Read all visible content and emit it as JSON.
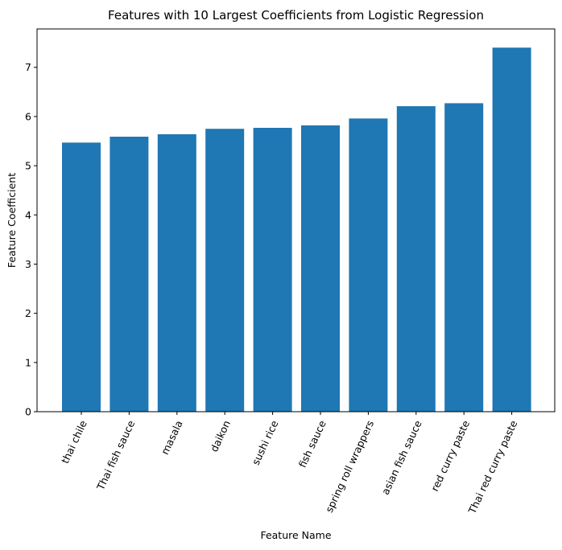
{
  "chart_data": {
    "type": "bar",
    "title": "Features with 10 Largest Coefficients from Logistic Regression",
    "xlabel": "Feature Name",
    "ylabel": "Feature Coefficient",
    "categories": [
      "thai chile",
      "Thai fish sauce",
      "masala",
      "daikon",
      "sushi rice",
      "fish sauce",
      "spring roll wrappers",
      "asian fish sauce",
      "red curry paste",
      "Thai red curry paste"
    ],
    "values": [
      5.47,
      5.59,
      5.64,
      5.75,
      5.77,
      5.82,
      5.96,
      6.21,
      6.27,
      7.4
    ],
    "ylim": [
      0,
      7.78
    ],
    "yticks": [
      0,
      1,
      2,
      3,
      4,
      5,
      6,
      7
    ],
    "bar_color": "#1f77b4",
    "grid": false,
    "legend": "none"
  }
}
